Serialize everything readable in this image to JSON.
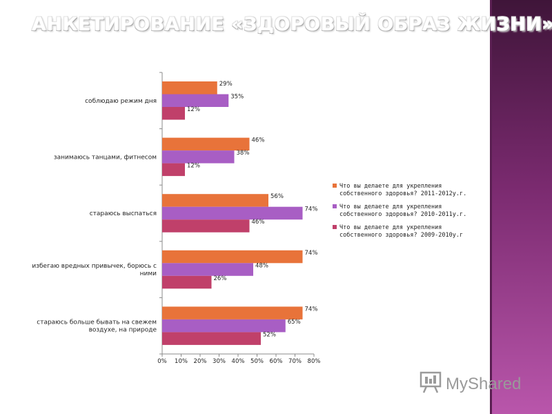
{
  "slide": {
    "title": "АНКЕТИРОВАНИЕ «ЗДОРОВЫЙ ОБРАЗ ЖИЗНИ»",
    "accent_band_color": "#7a2a6f"
  },
  "watermark": {
    "text": "MyShared",
    "icon": "presentation-board-icon"
  },
  "chart_data": {
    "type": "bar",
    "orientation": "horizontal",
    "title": "",
    "xlabel": "",
    "ylabel": "",
    "xlim": [
      0,
      80
    ],
    "x_ticks": [
      "0%",
      "10%",
      "20%",
      "30%",
      "40%",
      "50%",
      "60%",
      "70%",
      "80%"
    ],
    "grid": false,
    "legend_position": "right",
    "categories": [
      [
        "соблюдаю режим дня"
      ],
      [
        "занимаюсь танцами, фитнесом"
      ],
      [
        "стараюсь выспаться"
      ],
      [
        "избегаю вредных привычек, борюсь с",
        "ними"
      ],
      [
        "стараюсь больше бывать на свежем",
        "воздухе, на природе"
      ]
    ],
    "series": [
      {
        "name": [
          "Что вы делаете для укрепления",
          "собственного здоровья? 2011-2012у.г."
        ],
        "color": "#e8733a",
        "values": [
          29,
          46,
          56,
          74,
          74
        ],
        "labels": [
          "29%",
          "46%",
          "56%",
          "74%",
          "74%"
        ]
      },
      {
        "name": [
          "Что вы делаете для укрепления",
          "собственного здоровья? 2010-2011у.г."
        ],
        "color": "#a85ec4",
        "values": [
          35,
          38,
          74,
          48,
          65
        ],
        "labels": [
          "35%",
          "38%",
          "74%",
          "48%",
          "65%"
        ]
      },
      {
        "name": [
          "Что вы делаете для укрепления",
          "собственного здоровья? 2009-2010у.г"
        ],
        "color": "#c0406a",
        "values": [
          12,
          12,
          46,
          26,
          52
        ],
        "labels": [
          "12%",
          "12%",
          "46%",
          "26%",
          "52%"
        ]
      }
    ]
  }
}
